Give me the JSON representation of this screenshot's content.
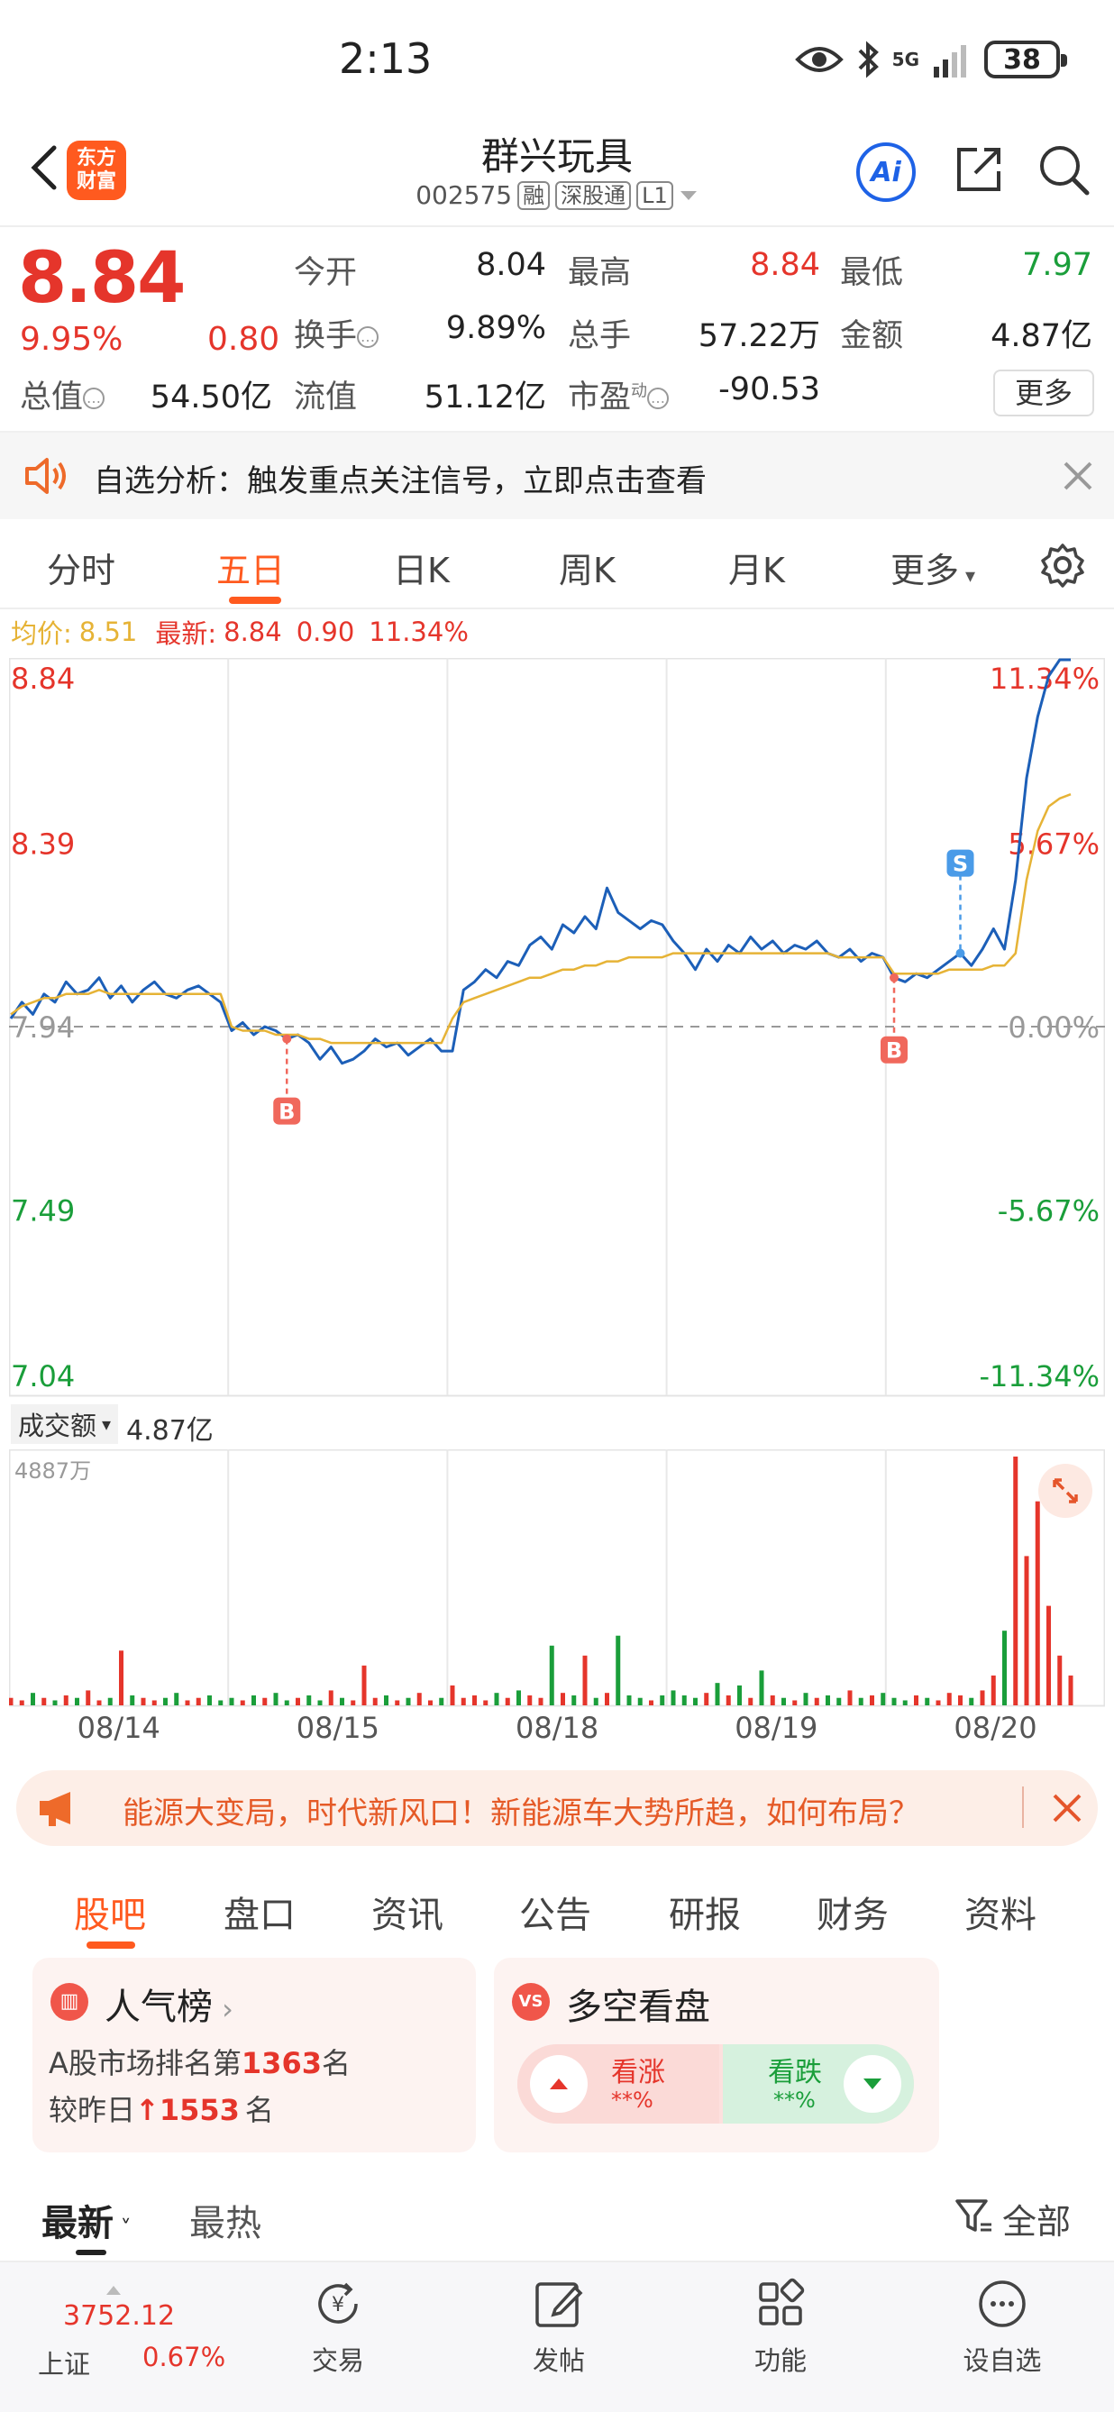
{
  "status": {
    "time": "2:13",
    "network": "5G",
    "battery": "38"
  },
  "header": {
    "app_logo_line1": "东方",
    "app_logo_line2": "财富",
    "stock_name": "群兴玩具",
    "stock_code": "002575",
    "tags": [
      "融",
      "深股通",
      "L1"
    ],
    "ai_label": "Ai"
  },
  "quote": {
    "price": "8.84",
    "change_pct": "9.95%",
    "change_amt": "0.80",
    "fields": [
      {
        "label": "今开",
        "value": "8.04",
        "color": "dark"
      },
      {
        "label": "最高",
        "value": "8.84",
        "color": "red"
      },
      {
        "label": "最低",
        "value": "7.97",
        "color": "green"
      },
      {
        "label": "换手",
        "value": "9.89%",
        "color": "dark"
      },
      {
        "label": "总手",
        "value": "57.22万",
        "color": "dark"
      },
      {
        "label": "金额",
        "value": "4.87亿",
        "color": "dark"
      },
      {
        "label": "总值",
        "value": "54.50亿",
        "color": "dark"
      },
      {
        "label": "流值",
        "value": "51.12亿",
        "color": "dark"
      },
      {
        "label": "市盈",
        "value": "-90.53",
        "color": "dark"
      }
    ],
    "pe_superscript": "动",
    "more_label": "更多"
  },
  "analysis": {
    "text": "自选分析：触发重点关注信号，立即点击查看"
  },
  "period_tabs": [
    "分时",
    "五日",
    "日K",
    "周K",
    "月K",
    "更多"
  ],
  "legend": {
    "avg_label": "均价:",
    "avg_value": "8.51",
    "latest_label": "最新:",
    "latest_price": "8.84",
    "latest_change": "0.90",
    "latest_pct": "11.34%"
  },
  "chart_data": {
    "type": "line",
    "days": [
      "08/14",
      "08/15",
      "08/18",
      "08/19",
      "08/20"
    ],
    "ylim": [
      7.04,
      8.84
    ],
    "baseline": 7.94,
    "y_ticks_left": [
      "8.84",
      "8.39",
      "7.94",
      "7.49",
      "7.04"
    ],
    "y_ticks_right": [
      "11.34%",
      "5.67%",
      "0.00%",
      "-5.67%",
      "-11.34%"
    ],
    "series": [
      {
        "name": "最新",
        "color": "#1c5fb8",
        "values": [
          7.96,
          8.0,
          7.97,
          8.02,
          8.0,
          8.05,
          8.02,
          8.03,
          8.06,
          8.01,
          8.04,
          8.0,
          8.03,
          8.05,
          8.02,
          8.01,
          8.03,
          8.04,
          8.02,
          8.0,
          7.93,
          7.95,
          7.92,
          7.94,
          7.93,
          7.91,
          7.92,
          7.9,
          7.86,
          7.89,
          7.85,
          7.86,
          7.88,
          7.91,
          7.89,
          7.9,
          7.87,
          7.89,
          7.91,
          7.88,
          7.88,
          8.03,
          8.05,
          8.08,
          8.06,
          8.1,
          8.09,
          8.14,
          8.16,
          8.13,
          8.19,
          8.17,
          8.21,
          8.18,
          8.28,
          8.22,
          8.2,
          8.18,
          8.2,
          8.19,
          8.15,
          8.12,
          8.08,
          8.13,
          8.1,
          8.14,
          8.12,
          8.16,
          8.13,
          8.15,
          8.12,
          8.14,
          8.13,
          8.15,
          8.12,
          8.11,
          8.13,
          8.1,
          8.12,
          8.11,
          8.06,
          8.05,
          8.07,
          8.06,
          8.08,
          8.1,
          8.12,
          8.09,
          8.13,
          8.18,
          8.13,
          8.3,
          8.55,
          8.7,
          8.8,
          8.84,
          8.84
        ]
      },
      {
        "name": "均价",
        "color": "#e6b336",
        "values": [
          7.97,
          7.99,
          8.0,
          8.01,
          8.01,
          8.02,
          8.02,
          8.02,
          8.03,
          8.02,
          8.02,
          8.02,
          8.02,
          8.02,
          8.02,
          8.02,
          8.02,
          8.02,
          8.02,
          8.02,
          7.94,
          7.93,
          7.93,
          7.93,
          7.92,
          7.92,
          7.92,
          7.91,
          7.91,
          7.9,
          7.9,
          7.9,
          7.9,
          7.9,
          7.9,
          7.9,
          7.9,
          7.9,
          7.9,
          7.9,
          7.96,
          8.0,
          8.01,
          8.02,
          8.03,
          8.04,
          8.05,
          8.06,
          8.06,
          8.07,
          8.08,
          8.08,
          8.09,
          8.09,
          8.1,
          8.1,
          8.11,
          8.11,
          8.11,
          8.11,
          8.12,
          8.12,
          8.12,
          8.12,
          8.12,
          8.12,
          8.12,
          8.12,
          8.12,
          8.12,
          8.12,
          8.12,
          8.12,
          8.12,
          8.12,
          8.11,
          8.11,
          8.11,
          8.11,
          8.11,
          8.07,
          8.07,
          8.07,
          8.07,
          8.07,
          8.08,
          8.08,
          8.08,
          8.08,
          8.09,
          8.09,
          8.12,
          8.3,
          8.42,
          8.48,
          8.5,
          8.51
        ]
      }
    ],
    "trade_markers": [
      {
        "label": "B",
        "index": 25,
        "color": "#f0685c"
      },
      {
        "label": "B",
        "index": 80,
        "color": "#f0685c"
      },
      {
        "label": "S",
        "index": 86,
        "color": "#4a9be8"
      }
    ]
  },
  "volume": {
    "label": "成交额",
    "total": "4.87亿",
    "max_label": "4887万",
    "values": [
      3,
      2,
      5,
      3,
      2,
      4,
      3,
      6,
      2,
      3,
      22,
      4,
      3,
      2,
      3,
      5,
      2,
      3,
      4,
      2,
      3,
      2,
      4,
      3,
      5,
      2,
      3,
      4,
      2,
      6,
      3,
      2,
      16,
      3,
      4,
      2,
      3,
      5,
      2,
      3,
      8,
      3,
      4,
      2,
      5,
      3,
      6,
      4,
      3,
      24,
      5,
      4,
      20,
      3,
      5,
      28,
      4,
      3,
      2,
      4,
      6,
      4,
      3,
      5,
      9,
      4,
      8,
      3,
      14,
      4,
      3,
      2,
      5,
      3,
      4,
      3,
      6,
      3,
      4,
      5,
      3,
      2,
      4,
      3,
      2,
      5,
      4,
      3,
      6,
      12,
      30,
      100,
      60,
      82,
      40,
      20,
      12
    ]
  },
  "promo": {
    "text": "能源大变局，时代新风口！新能源车大势所趋，如何布局？"
  },
  "sub_tabs": [
    "股吧",
    "盘口",
    "资讯",
    "公告",
    "研报",
    "财务",
    "资料"
  ],
  "popularity": {
    "title": "人气榜",
    "line1_prefix": "A股市场排名第",
    "rank": "1363",
    "line1_suffix": "名",
    "line2_prefix": "较昨日",
    "rise": "1553",
    "line2_suffix": "名"
  },
  "bull_bear": {
    "title": "多空看盘",
    "up_label": "看涨",
    "up_value": "**%",
    "down_label": "看跌",
    "down_value": "**%"
  },
  "feed": {
    "latest": "最新",
    "hot": "最热",
    "filter": "全部"
  },
  "bottom_nav": {
    "index_value": "3752.12",
    "index_name": "上证",
    "index_pct": "0.67%",
    "items": [
      "交易",
      "发帖",
      "功能",
      "设自选"
    ]
  }
}
